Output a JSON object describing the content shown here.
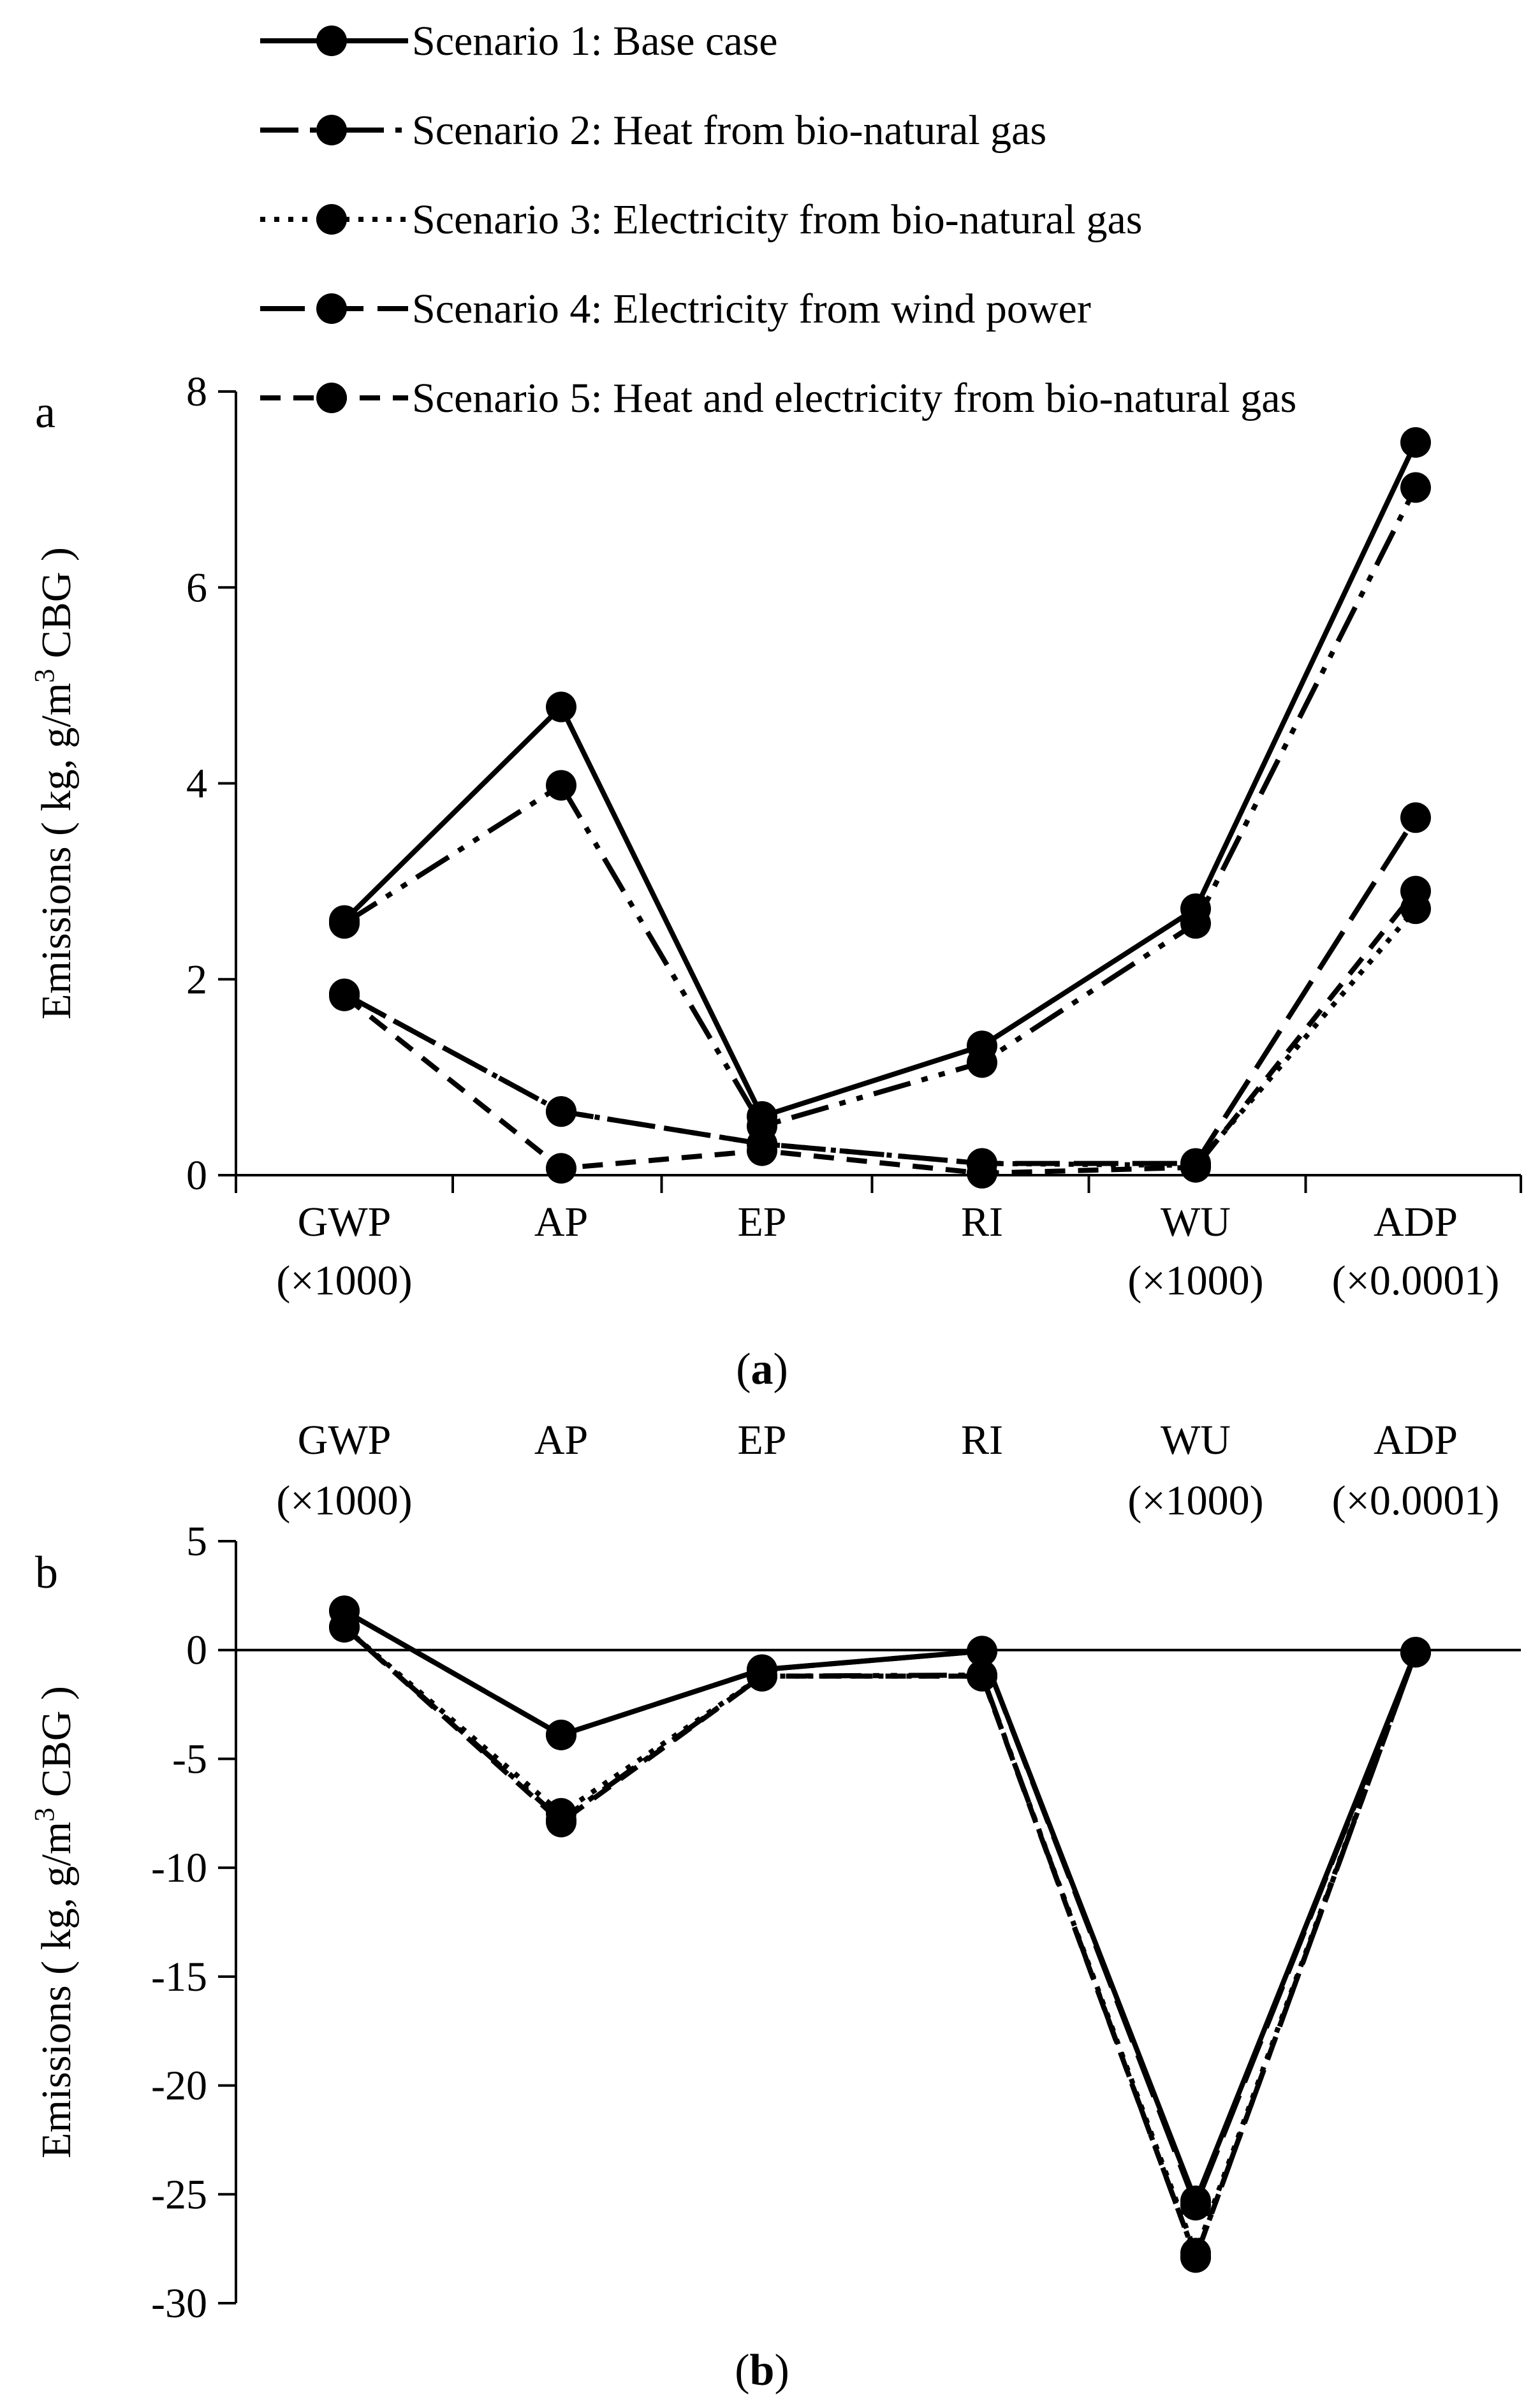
{
  "legend": [
    {
      "name": "Scenario 1: Base case",
      "style": "solid"
    },
    {
      "name": "Scenario 2: Heat from bio-natural gas",
      "style": "dashdotdot"
    },
    {
      "name": "Scenario 3: Electricity from bio-natural gas",
      "style": "dotted"
    },
    {
      "name": "Scenario 4: Electricity from wind power",
      "style": "longdash"
    },
    {
      "name": "Scenario 5: Heat and electricity from bio-natural gas",
      "style": "dashed"
    }
  ],
  "chart_data": [
    {
      "type": "line",
      "panel_letter": "a",
      "caption": {
        "open": "(",
        "letter": "a",
        "close": ")"
      },
      "categories": [
        {
          "name": "GWP",
          "scale": "(×1000)"
        },
        {
          "name": "AP",
          "scale": ""
        },
        {
          "name": "EP",
          "scale": ""
        },
        {
          "name": "RI",
          "scale": ""
        },
        {
          "name": "WU",
          "scale": "(×1000)"
        },
        {
          "name": "ADP",
          "scale": "(×0.0001)"
        }
      ],
      "ylabel": {
        "main": "Emissions ( kg, g/m",
        "sup": "3",
        "tail": " CBG )"
      },
      "ylim": [
        0,
        8
      ],
      "yticks": [
        0,
        2,
        4,
        6,
        8
      ],
      "x_axis_at": 0,
      "category_labels_position": "bottom",
      "series": [
        {
          "name": "Scenario 1: Base case",
          "values": [
            2.6,
            4.78,
            0.6,
            1.32,
            2.72,
            7.48
          ]
        },
        {
          "name": "Scenario 2: Heat from bio-natural gas",
          "values": [
            2.57,
            3.98,
            0.5,
            1.15,
            2.57,
            7.02
          ]
        },
        {
          "name": "Scenario 3: Electricity from bio-natural gas",
          "values": [
            1.85,
            0.65,
            0.32,
            0.12,
            0.1,
            2.72
          ]
        },
        {
          "name": "Scenario 4: Electricity from wind power",
          "values": [
            1.85,
            0.65,
            0.32,
            0.12,
            0.12,
            3.65
          ]
        },
        {
          "name": "Scenario 5: Heat and electricity from bio-natural gas",
          "values": [
            1.83,
            0.07,
            0.25,
            0.02,
            0.08,
            2.9
          ]
        }
      ]
    },
    {
      "type": "line",
      "panel_letter": "b",
      "caption": {
        "open": "(",
        "letter": "b",
        "close": ")"
      },
      "categories": [
        {
          "name": "GWP",
          "scale": "(×1000)"
        },
        {
          "name": "AP",
          "scale": ""
        },
        {
          "name": "EP",
          "scale": ""
        },
        {
          "name": "RI",
          "scale": ""
        },
        {
          "name": "WU",
          "scale": "(×1000)"
        },
        {
          "name": "ADP",
          "scale": "(×0.0001)"
        }
      ],
      "ylabel": {
        "main": "Emissions ( kg, g/m",
        "sup": "3",
        "tail": " CBG )"
      },
      "ylim": [
        -30,
        5
      ],
      "yticks": [
        -30,
        -25,
        -20,
        -15,
        -10,
        -5,
        0,
        5
      ],
      "x_axis_at": 0,
      "category_labels_position": "top",
      "series": [
        {
          "name": "Scenario 1",
          "values": [
            1.8,
            -3.9,
            -0.9,
            -0.05,
            -25.3,
            -0.1
          ]
        },
        {
          "name": "Scenario 2",
          "values": [
            1.05,
            -7.8,
            -1.2,
            -1.15,
            -27.9,
            -0.1
          ]
        },
        {
          "name": "Scenario 3",
          "values": [
            1.05,
            -7.5,
            -1.2,
            -1.2,
            -27.7,
            -0.1
          ]
        },
        {
          "name": "Scenario 4",
          "values": [
            1.8,
            -3.9,
            -0.9,
            -0.05,
            -25.5,
            -0.1
          ]
        },
        {
          "name": "Scenario 5",
          "values": [
            1.05,
            -7.9,
            -1.2,
            -1.2,
            -27.9,
            -0.1
          ]
        }
      ]
    }
  ]
}
